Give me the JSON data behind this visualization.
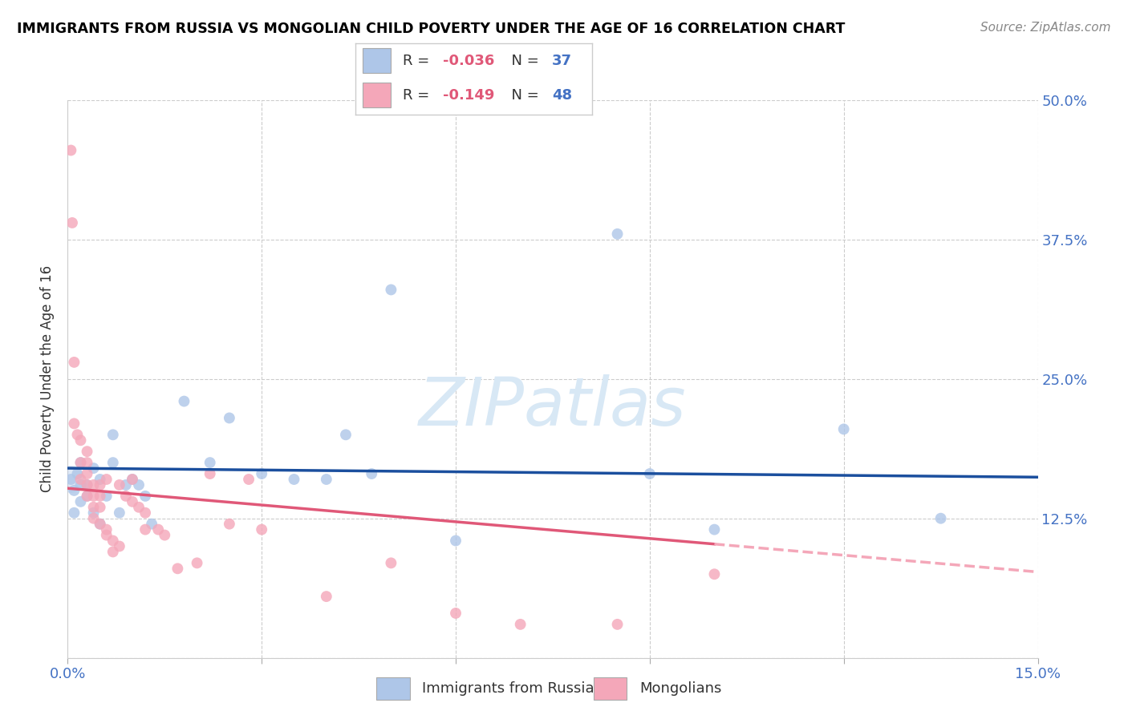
{
  "title": "IMMIGRANTS FROM RUSSIA VS MONGOLIAN CHILD POVERTY UNDER THE AGE OF 16 CORRELATION CHART",
  "source": "Source: ZipAtlas.com",
  "ylabel": "Child Poverty Under the Age of 16",
  "xlim": [
    0.0,
    0.15
  ],
  "ylim": [
    0.0,
    0.5
  ],
  "russia_R": -0.036,
  "russia_N": 37,
  "mongolian_R": -0.149,
  "mongolian_N": 48,
  "russia_color": "#aec6e8",
  "mongolian_color": "#f4a7b9",
  "russia_line_color": "#1b4f9e",
  "mongolian_line_solid_color": "#e05878",
  "mongolian_line_dash_color": "#f4a7b9",
  "watermark_color": "#d8e8f5",
  "russia_x": [
    0.0005,
    0.001,
    0.001,
    0.0015,
    0.002,
    0.002,
    0.002,
    0.003,
    0.003,
    0.004,
    0.004,
    0.005,
    0.005,
    0.006,
    0.007,
    0.007,
    0.008,
    0.009,
    0.01,
    0.011,
    0.012,
    0.013,
    0.018,
    0.022,
    0.025,
    0.03,
    0.035,
    0.04,
    0.043,
    0.047,
    0.05,
    0.06,
    0.085,
    0.09,
    0.1,
    0.12,
    0.135
  ],
  "russia_y": [
    0.16,
    0.13,
    0.15,
    0.165,
    0.14,
    0.155,
    0.175,
    0.155,
    0.145,
    0.17,
    0.13,
    0.12,
    0.16,
    0.145,
    0.175,
    0.2,
    0.13,
    0.155,
    0.16,
    0.155,
    0.145,
    0.12,
    0.23,
    0.175,
    0.215,
    0.165,
    0.16,
    0.16,
    0.2,
    0.165,
    0.33,
    0.105,
    0.38,
    0.165,
    0.115,
    0.205,
    0.125
  ],
  "mongolian_x": [
    0.0005,
    0.0007,
    0.001,
    0.001,
    0.0015,
    0.002,
    0.002,
    0.002,
    0.003,
    0.003,
    0.003,
    0.003,
    0.003,
    0.004,
    0.004,
    0.004,
    0.004,
    0.005,
    0.005,
    0.005,
    0.005,
    0.006,
    0.006,
    0.006,
    0.007,
    0.007,
    0.008,
    0.008,
    0.009,
    0.01,
    0.01,
    0.011,
    0.012,
    0.012,
    0.014,
    0.015,
    0.017,
    0.02,
    0.022,
    0.025,
    0.028,
    0.03,
    0.04,
    0.05,
    0.06,
    0.07,
    0.085,
    0.1
  ],
  "mongolian_y": [
    0.455,
    0.39,
    0.265,
    0.21,
    0.2,
    0.195,
    0.175,
    0.16,
    0.185,
    0.175,
    0.165,
    0.155,
    0.145,
    0.155,
    0.145,
    0.135,
    0.125,
    0.155,
    0.145,
    0.135,
    0.12,
    0.115,
    0.11,
    0.16,
    0.105,
    0.095,
    0.155,
    0.1,
    0.145,
    0.14,
    0.16,
    0.135,
    0.13,
    0.115,
    0.115,
    0.11,
    0.08,
    0.085,
    0.165,
    0.12,
    0.16,
    0.115,
    0.055,
    0.085,
    0.04,
    0.03,
    0.03,
    0.075
  ],
  "x_ticks": [
    0.0,
    0.03,
    0.06,
    0.09,
    0.12,
    0.15
  ],
  "y_ticks": [
    0.0,
    0.125,
    0.25,
    0.375,
    0.5
  ],
  "y_tick_labels": [
    "",
    "12.5%",
    "25.0%",
    "37.5%",
    "50.0%"
  ]
}
